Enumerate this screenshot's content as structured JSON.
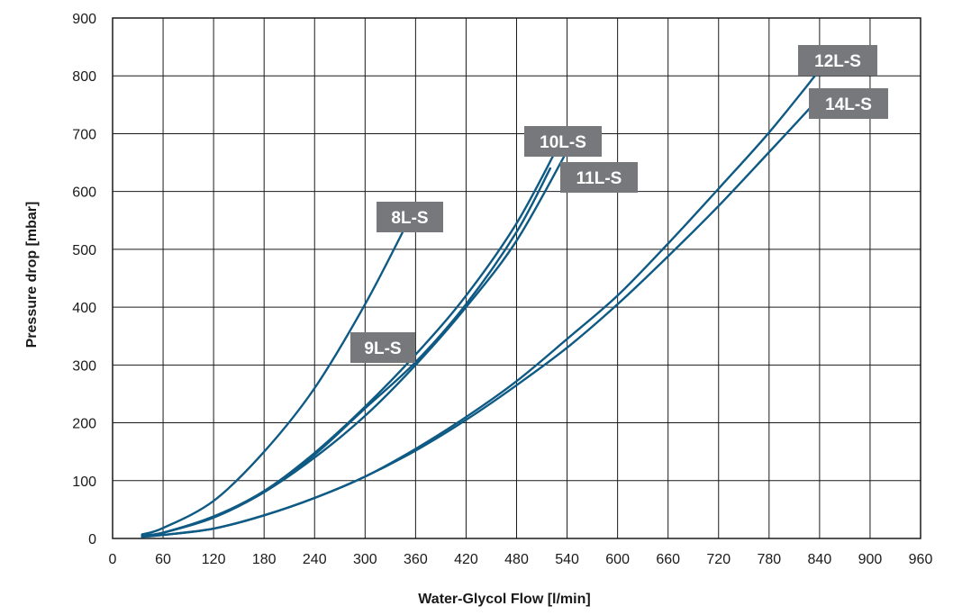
{
  "chart_data": {
    "type": "line",
    "xlabel": "Water-Glycol Flow [l/min]",
    "ylabel": "Pressure drop [mbar]",
    "xlim": [
      0,
      960
    ],
    "ylim": [
      0,
      900
    ],
    "xticks": [
      0,
      60,
      120,
      180,
      240,
      300,
      360,
      420,
      480,
      540,
      600,
      660,
      720,
      780,
      840,
      900,
      960
    ],
    "yticks": [
      0,
      100,
      200,
      300,
      400,
      500,
      600,
      700,
      800,
      900
    ],
    "grid": true,
    "series": [
      {
        "name": "8L-S",
        "x": [
          35,
          60,
          120,
          180,
          240,
          300,
          350
        ],
        "y": [
          7,
          18,
          65,
          150,
          260,
          405,
          545
        ]
      },
      {
        "name": "9L-S",
        "x": [
          35,
          60,
          120,
          180,
          240,
          300,
          360,
          420,
          480,
          520
        ],
        "y": [
          5,
          10,
          38,
          80,
          145,
          225,
          305,
          405,
          530,
          640
        ]
      },
      {
        "name": "10L-S",
        "x": [
          35,
          60,
          120,
          180,
          240,
          300,
          360,
          420,
          480,
          530
        ],
        "y": [
          5,
          10,
          38,
          82,
          148,
          228,
          318,
          420,
          545,
          680
        ]
      },
      {
        "name": "11L-S",
        "x": [
          35,
          60,
          120,
          180,
          240,
          300,
          360,
          420,
          480,
          540
        ],
        "y": [
          5,
          10,
          36,
          80,
          140,
          212,
          300,
          400,
          515,
          670
        ]
      },
      {
        "name": "12L-S",
        "x": [
          35,
          60,
          120,
          180,
          240,
          300,
          360,
          420,
          480,
          540,
          600,
          660,
          720,
          780,
          840
        ],
        "y": [
          3,
          6,
          17,
          40,
          70,
          107,
          155,
          210,
          272,
          345,
          420,
          510,
          605,
          702,
          810
        ]
      },
      {
        "name": "14L-S",
        "x": [
          35,
          60,
          120,
          180,
          240,
          300,
          360,
          420,
          480,
          540,
          600,
          660,
          720,
          780,
          845
        ],
        "y": [
          3,
          6,
          17,
          40,
          70,
          107,
          152,
          205,
          265,
          330,
          405,
          488,
          575,
          668,
          770
        ]
      }
    ],
    "annotations": [
      {
        "text": "8L-S",
        "series": "8L-S"
      },
      {
        "text": "9L-S",
        "series": "9L-S"
      },
      {
        "text": "10L-S",
        "series": "10L-S"
      },
      {
        "text": "11L-S",
        "series": "11L-S"
      },
      {
        "text": "12L-S",
        "series": "12L-S"
      },
      {
        "text": "14L-S",
        "series": "14L-S"
      }
    ],
    "colors": {
      "line": "#0e5a84",
      "label_bg": "#77787b",
      "label_text": "#ffffff"
    }
  }
}
